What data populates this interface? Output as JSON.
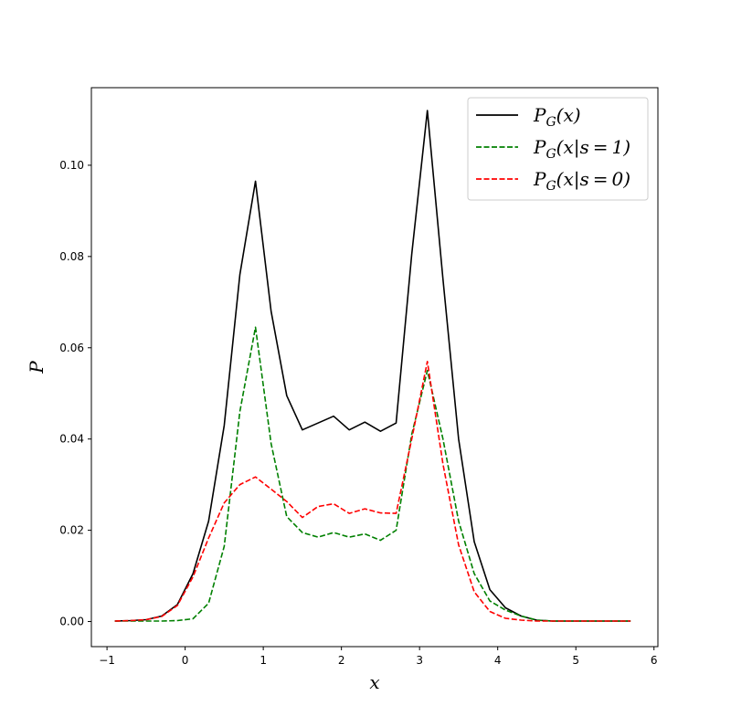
{
  "chart_data": {
    "type": "line",
    "xlabel": "x",
    "ylabel": "P",
    "xlim": [
      -1.2,
      6.05
    ],
    "ylim": [
      -0.0055,
      0.117
    ],
    "xticks": [
      -1,
      0,
      1,
      2,
      3,
      4,
      5,
      6
    ],
    "yticks": [
      0.0,
      0.02,
      0.04,
      0.06,
      0.08,
      0.1
    ],
    "ytick_labels": [
      "0.00",
      "0.02",
      "0.04",
      "0.06",
      "0.08",
      "0.10"
    ],
    "grid": false,
    "legend_position": "top-right",
    "x": [
      -0.9,
      -0.7,
      -0.5,
      -0.3,
      -0.1,
      0.1,
      0.3,
      0.5,
      0.7,
      0.9,
      1.1,
      1.3,
      1.5,
      1.7,
      1.9,
      2.1,
      2.3,
      2.5,
      2.7,
      2.9,
      3.1,
      3.3,
      3.5,
      3.7,
      3.9,
      4.1,
      4.3,
      4.5,
      4.7,
      4.9,
      5.1,
      5.3,
      5.5,
      5.7
    ],
    "series": [
      {
        "name": "P_G(x)",
        "legend": {
          "base": "P",
          "sub": "G",
          "args": "(x)"
        },
        "color": "#000000",
        "dash": "solid",
        "values": [
          0.0001,
          0.0002,
          0.0004,
          0.0012,
          0.0037,
          0.0105,
          0.022,
          0.043,
          0.076,
          0.0965,
          0.068,
          0.0495,
          0.042,
          0.0435,
          0.045,
          0.042,
          0.0437,
          0.0417,
          0.0435,
          0.0805,
          0.112,
          0.075,
          0.04,
          0.0175,
          0.007,
          0.003,
          0.0012,
          0.0003,
          0.0001,
          0.0001,
          0.0001,
          0.0001,
          0.0001,
          0.0001
        ]
      },
      {
        "name": "P_G(x|s=1)",
        "legend": {
          "base": "P",
          "sub": "G",
          "args": "(x|s = 1)"
        },
        "color": "#008000",
        "dash": "dashed",
        "values": [
          0.0001,
          0.0001,
          0.0001,
          0.0001,
          0.0002,
          0.0006,
          0.004,
          0.0165,
          0.046,
          0.0645,
          0.039,
          0.023,
          0.0195,
          0.0185,
          0.0195,
          0.0185,
          0.0192,
          0.0178,
          0.02,
          0.041,
          0.055,
          0.04,
          0.022,
          0.0105,
          0.0045,
          0.0025,
          0.0012,
          0.0003,
          0.0001,
          0.0001,
          0.0001,
          0.0001,
          0.0001,
          0.0001
        ]
      },
      {
        "name": "P_G(x|s=0)",
        "legend": {
          "base": "P",
          "sub": "G",
          "args": "(x|s = 0)"
        },
        "color": "#ff0000",
        "dash": "dashed",
        "values": [
          0.0001,
          0.0002,
          0.0004,
          0.0011,
          0.0035,
          0.0098,
          0.0183,
          0.026,
          0.03,
          0.0317,
          0.029,
          0.0263,
          0.0228,
          0.0252,
          0.0258,
          0.0237,
          0.0247,
          0.0238,
          0.0237,
          0.04,
          0.057,
          0.0345,
          0.0168,
          0.0065,
          0.0022,
          0.0007,
          0.0003,
          0.0001,
          0.0001,
          0.0001,
          0.0001,
          0.0001,
          0.0001,
          0.0001
        ]
      }
    ]
  }
}
